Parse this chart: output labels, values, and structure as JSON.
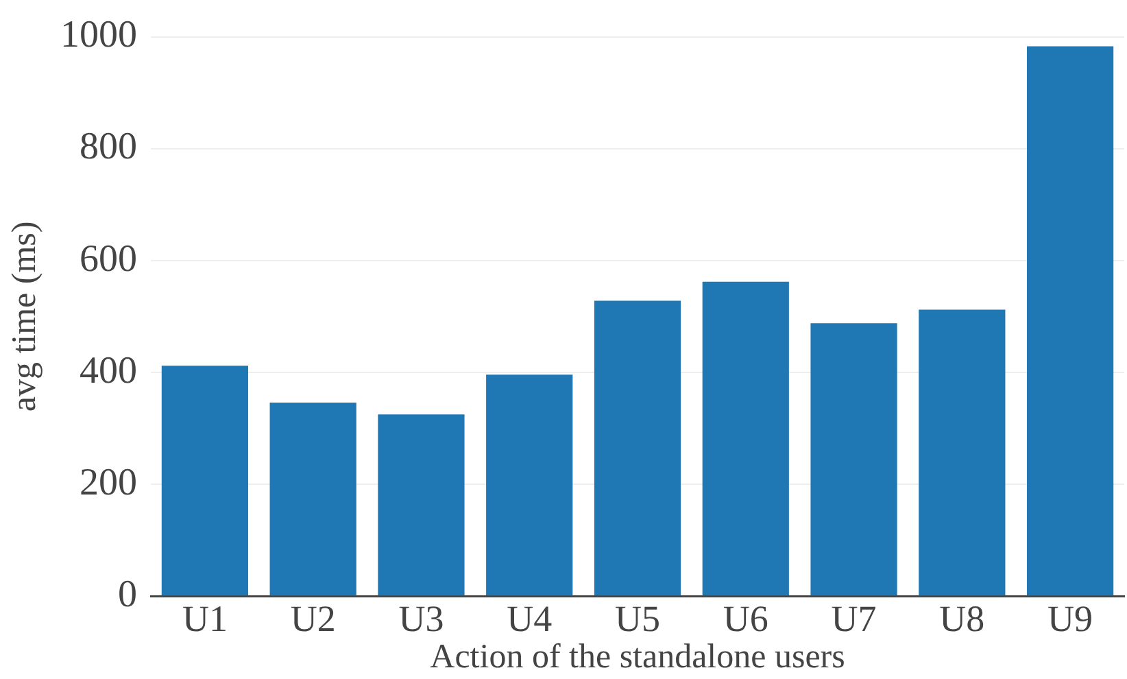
{
  "chart_data": {
    "type": "bar",
    "xlabel": "Action of the standalone users",
    "ylabel": "avg time (ms)",
    "categories": [
      "U1",
      "U2",
      "U3",
      "U4",
      "U5",
      "U6",
      "U7",
      "U8",
      "U9"
    ],
    "values": [
      412,
      346,
      325,
      396,
      528,
      562,
      488,
      512,
      983
    ],
    "color": "#1f77b4",
    "ylim": [
      0,
      1000
    ],
    "yticks": [
      0,
      200,
      400,
      600,
      800,
      1000
    ],
    "grid": "y"
  }
}
